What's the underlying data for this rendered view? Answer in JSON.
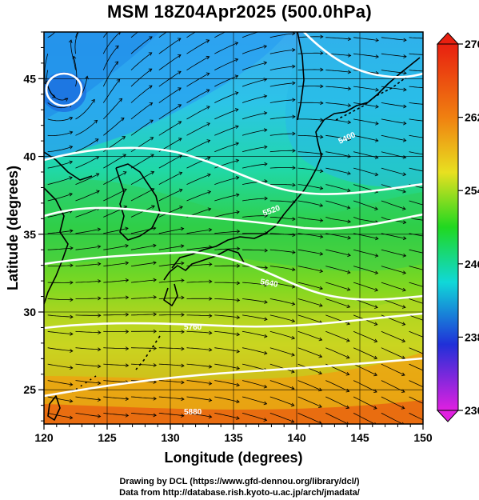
{
  "title": "MSM 18Z04Apr2025 (500.0hPa)",
  "xlabel": "Longitude (degrees)",
  "ylabel": "Latitude  (degrees)",
  "x_ticks": [
    "120",
    "125",
    "130",
    "135",
    "140",
    "145",
    "150"
  ],
  "y_ticks": [
    "25",
    "30",
    "35",
    "40",
    "45"
  ],
  "colorbar": {
    "ticks": [
      "270",
      "262",
      "254",
      "246",
      "238",
      "230"
    ],
    "min": 230,
    "max": 270,
    "colors": [
      "#e020e0",
      "#2030d8",
      "#10d8d8",
      "#20d820",
      "#e8e020",
      "#f08010",
      "#e82010"
    ]
  },
  "contour_labels": [
    "5400",
    "5520",
    "5640",
    "5760",
    "5880"
  ],
  "credits": [
    "Drawing by DCL (https://www.gfd-dennou.org/library/dcl/)",
    "Data from http://database.rish.kyoto-u.ac.jp/arch/jmadata/"
  ],
  "colors": {
    "contour": "#ffffff",
    "streamline": "#000000",
    "coast": "#000000"
  }
}
